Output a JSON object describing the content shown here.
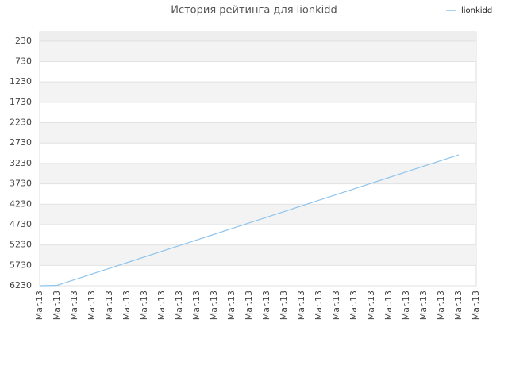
{
  "chart_data": {
    "type": "line",
    "title": "История рейтинга для lionkidd",
    "categories": [
      "Mar.13",
      "Mar.13",
      "Mar.13",
      "Mar.13",
      "Mar.13",
      "Mar.13",
      "Mar.13",
      "Mar.13",
      "Mar.13",
      "Mar.13",
      "Mar.13",
      "Mar.13",
      "Mar.13",
      "Mar.13",
      "Mar.13",
      "Mar.13",
      "Mar.13",
      "Mar.13",
      "Mar.13",
      "Mar.13",
      "Mar.13",
      "Mar.13",
      "Mar.13",
      "Mar.13",
      "Mar.13",
      "Mar.13"
    ],
    "series": [
      {
        "name": "lionkidd",
        "color": "#8ec4ec",
        "values": [
          6230,
          6220,
          6081,
          5942,
          5802,
          5663,
          5524,
          5385,
          5246,
          5106,
          4967,
          4828,
          4689,
          4550,
          4410,
          4271,
          4132,
          3993,
          3854,
          3714,
          3575,
          3436,
          3297,
          3158,
          3018,
          null
        ]
      }
    ],
    "ylim": [
      6230,
      0
    ],
    "yticks": [
      230,
      730,
      1230,
      1730,
      2230,
      2730,
      3230,
      3730,
      4230,
      4730,
      5230,
      5730,
      6230
    ],
    "grid": true,
    "legend": "top-right"
  }
}
